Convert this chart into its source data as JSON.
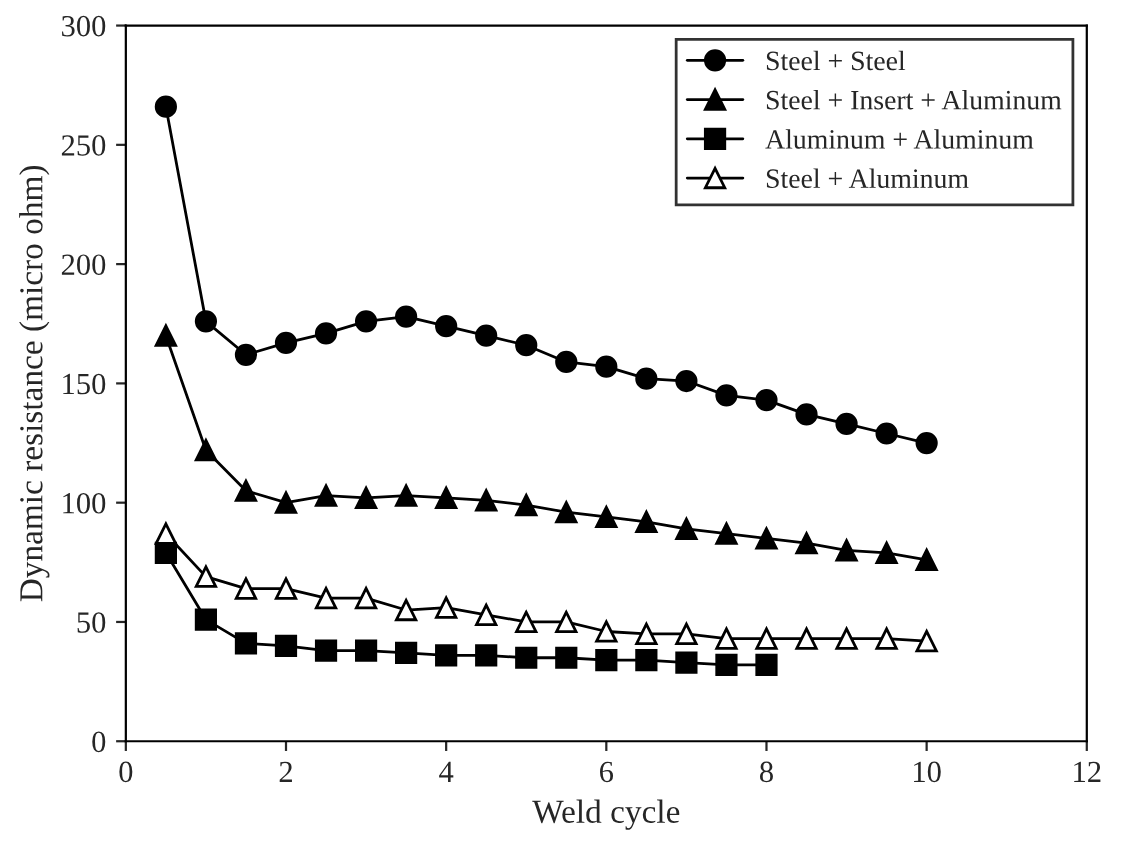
{
  "chart_data": {
    "type": "line",
    "xlabel": "Weld cycle",
    "ylabel": "Dynamic resistance (micro ohm)",
    "xlim": [
      0,
      12
    ],
    "xticks": [
      0,
      2,
      4,
      6,
      8,
      10,
      12
    ],
    "ylim": [
      0,
      300
    ],
    "yticks": [
      0,
      50,
      100,
      150,
      200,
      250,
      300
    ],
    "grid": false,
    "legend": "top right",
    "line_style": "solid",
    "series": [
      {
        "name": "Steel + Steel",
        "color": "#000000",
        "marker": "circle",
        "x": [
          0.5,
          1,
          1.5,
          2,
          2.5,
          3,
          3.5,
          4,
          4.5,
          5,
          5.5,
          6,
          6.5,
          7,
          7.5,
          8,
          8.5,
          9,
          9.5,
          10
        ],
        "values": [
          266,
          176,
          162,
          167,
          171,
          176,
          178,
          174,
          170,
          166,
          159,
          157,
          152,
          151,
          145,
          143,
          137,
          133,
          129,
          125
        ]
      },
      {
        "name": "Steel + Insert + Aluminum",
        "color": "#000000",
        "marker": "triangle",
        "x": [
          0.5,
          1,
          1.5,
          2,
          2.5,
          3,
          3.5,
          4,
          4.5,
          5,
          5.5,
          6,
          6.5,
          7,
          7.5,
          8,
          8.5,
          9,
          9.5,
          10
        ],
        "values": [
          170,
          122,
          105,
          100,
          103,
          102,
          103,
          102,
          101,
          99,
          96,
          94,
          92,
          89,
          87,
          85,
          83,
          80,
          79,
          76
        ]
      },
      {
        "name": "Aluminum + Aluminum",
        "color": "#000000",
        "marker": "square",
        "x": [
          0.5,
          1,
          1.5,
          2,
          2.5,
          3,
          3.5,
          4,
          4.5,
          5,
          5.5,
          6,
          6.5,
          7,
          7.5,
          8
        ],
        "values": [
          79,
          51,
          41,
          40,
          38,
          38,
          37,
          36,
          36,
          35,
          35,
          34,
          34,
          33,
          32,
          32
        ]
      },
      {
        "name": "Steel + Aluminum",
        "color": "#000000",
        "marker": "triangle",
        "x": [
          0.5,
          1,
          1.5,
          2,
          2.5,
          3,
          3.5,
          4,
          4.5,
          5,
          5.5,
          6,
          6.5,
          7,
          7.5,
          8,
          8.5,
          9,
          9.5,
          10
        ],
        "values": [
          87,
          69,
          64,
          64,
          60,
          60,
          55,
          56,
          53,
          50,
          50,
          46,
          45,
          45,
          43,
          43,
          43,
          43,
          43,
          42
        ]
      }
    ]
  }
}
